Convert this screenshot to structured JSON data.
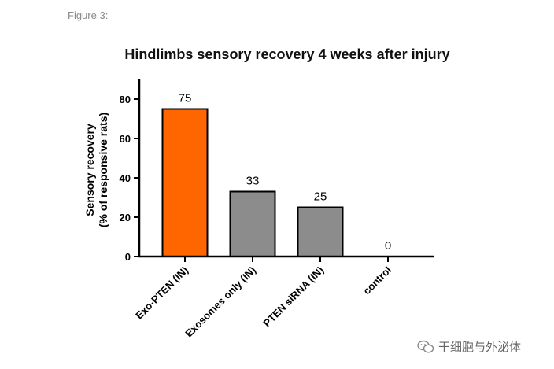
{
  "figure_label": "Figure 3:",
  "watermark": {
    "text": "干细胞与外泌体",
    "icon": "wechat-icon"
  },
  "colors": {
    "highlight": "#FF6600",
    "bar": "#8C8C8C",
    "axis": "#000000",
    "bar_stroke": "#000000"
  },
  "chart_data": {
    "type": "bar",
    "title": "Hindlimbs sensory recovery 4 weeks after injury",
    "xlabel": "",
    "ylabel": [
      "Sensory recovery",
      "(% of responsive rats)"
    ],
    "categories": [
      "Exo-PTEN (IN)",
      "Exosomes only (IN)",
      "PTEN siRNA (IN)",
      "control"
    ],
    "values": [
      75,
      33,
      25,
      0
    ],
    "value_labels": [
      "75",
      "33",
      "25",
      "0"
    ],
    "bar_colors": [
      "#FF6600",
      "#8C8C8C",
      "#8C8C8C",
      "#8C8C8C"
    ],
    "ylim": [
      0,
      90
    ],
    "yticks": [
      0,
      20,
      40,
      60,
      80
    ],
    "grid": false,
    "legend": "none"
  }
}
